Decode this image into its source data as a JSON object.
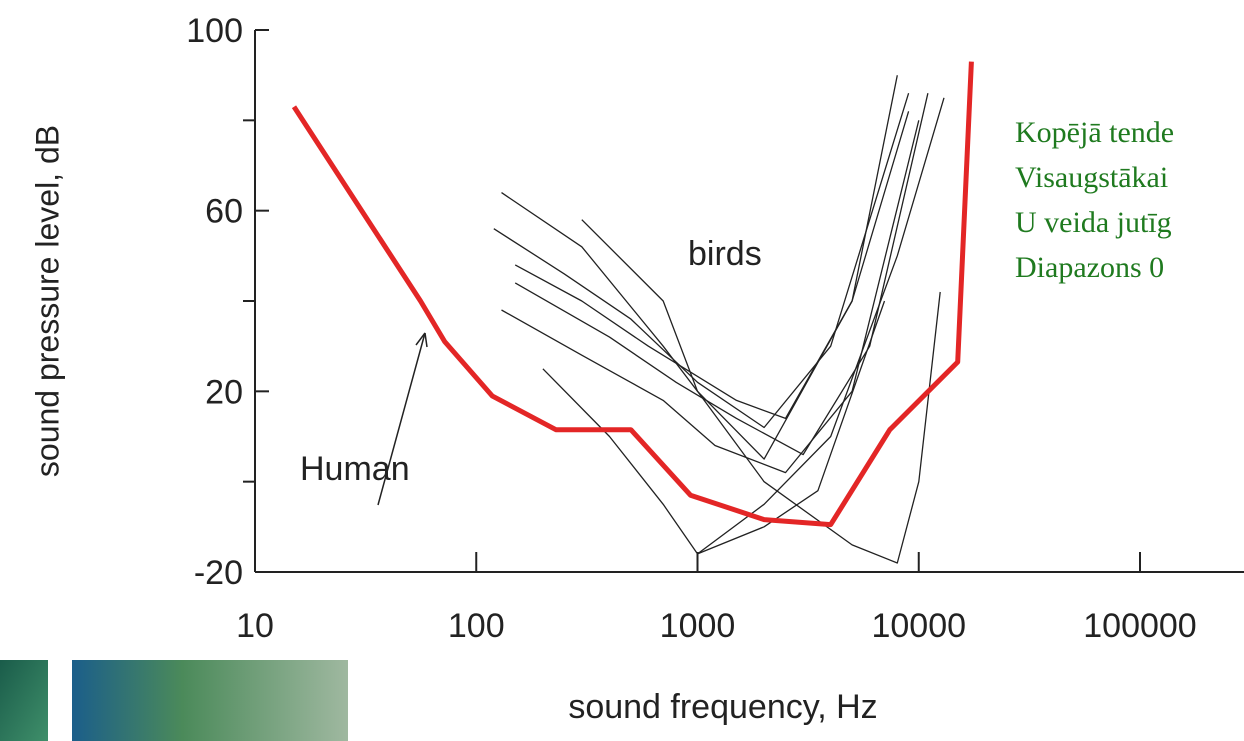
{
  "chart_data": {
    "type": "line",
    "xscale": "log",
    "xlabel": "sound frequency, Hz",
    "ylabel": "sound pressure level, dB",
    "xlim": [
      10,
      100000
    ],
    "xticks": [
      10,
      100,
      1000,
      10000,
      100000
    ],
    "ylim": [
      -20,
      100
    ],
    "yticks": [
      -20,
      20,
      60,
      100
    ],
    "yminorticks": [
      0,
      40,
      80
    ],
    "annotations": [
      {
        "text": "Human"
      },
      {
        "text": "birds"
      }
    ],
    "series": [
      {
        "color": "#e32626",
        "x": [
          15,
          56,
          72,
          118,
          229,
          500,
          930,
          2000,
          4000,
          7400,
          15000,
          17300
        ],
        "values": [
          83,
          40,
          31,
          19,
          11.5,
          11.5,
          -3,
          -8.4,
          -9.5,
          11.5,
          26.5,
          93
        ]
      },
      {
        "color": "#222222",
        "x": [
          130,
          300,
          700,
          1000,
          2000,
          5000,
          8000
        ],
        "values": [
          64,
          52,
          30,
          20,
          5,
          40,
          90
        ]
      },
      {
        "color": "#222222",
        "x": [
          120,
          250,
          500,
          1000,
          2000,
          4000,
          9000
        ],
        "values": [
          56,
          46,
          36,
          22,
          12,
          30,
          86
        ]
      },
      {
        "color": "#222222",
        "x": [
          150,
          300,
          600,
          1500,
          2500,
          5000,
          9000
        ],
        "values": [
          48,
          40,
          30,
          18,
          14,
          40,
          82
        ]
      },
      {
        "color": "#222222",
        "x": [
          130,
          300,
          700,
          1200,
          2500,
          5000,
          10000
        ],
        "values": [
          38,
          28,
          18,
          8,
          2,
          20,
          80
        ]
      },
      {
        "color": "#222222",
        "x": [
          200,
          400,
          700,
          1000,
          2000,
          3500,
          7000
        ],
        "values": [
          25,
          10,
          -5,
          -16,
          -10,
          -2,
          40
        ]
      },
      {
        "color": "#222222",
        "x": [
          300,
          700,
          1000,
          2000,
          5000,
          8000,
          10000,
          12500
        ],
        "values": [
          58,
          40,
          20,
          0,
          -14,
          -18,
          0,
          42
        ]
      },
      {
        "color": "#222222",
        "x": [
          1000,
          2000,
          4000,
          8000,
          13000
        ],
        "values": [
          -16,
          -5,
          10,
          50,
          85
        ]
      },
      {
        "color": "#222222",
        "x": [
          150,
          400,
          800,
          1500,
          3000,
          6000,
          11000
        ],
        "values": [
          44,
          32,
          22,
          14,
          6,
          30,
          86
        ]
      }
    ]
  },
  "side_text": {
    "color": "#1f7a1f",
    "lines": [
      "Kopējā tende",
      "Visaugstākai",
      "U veida jutīg",
      "Diapazons 0"
    ]
  }
}
